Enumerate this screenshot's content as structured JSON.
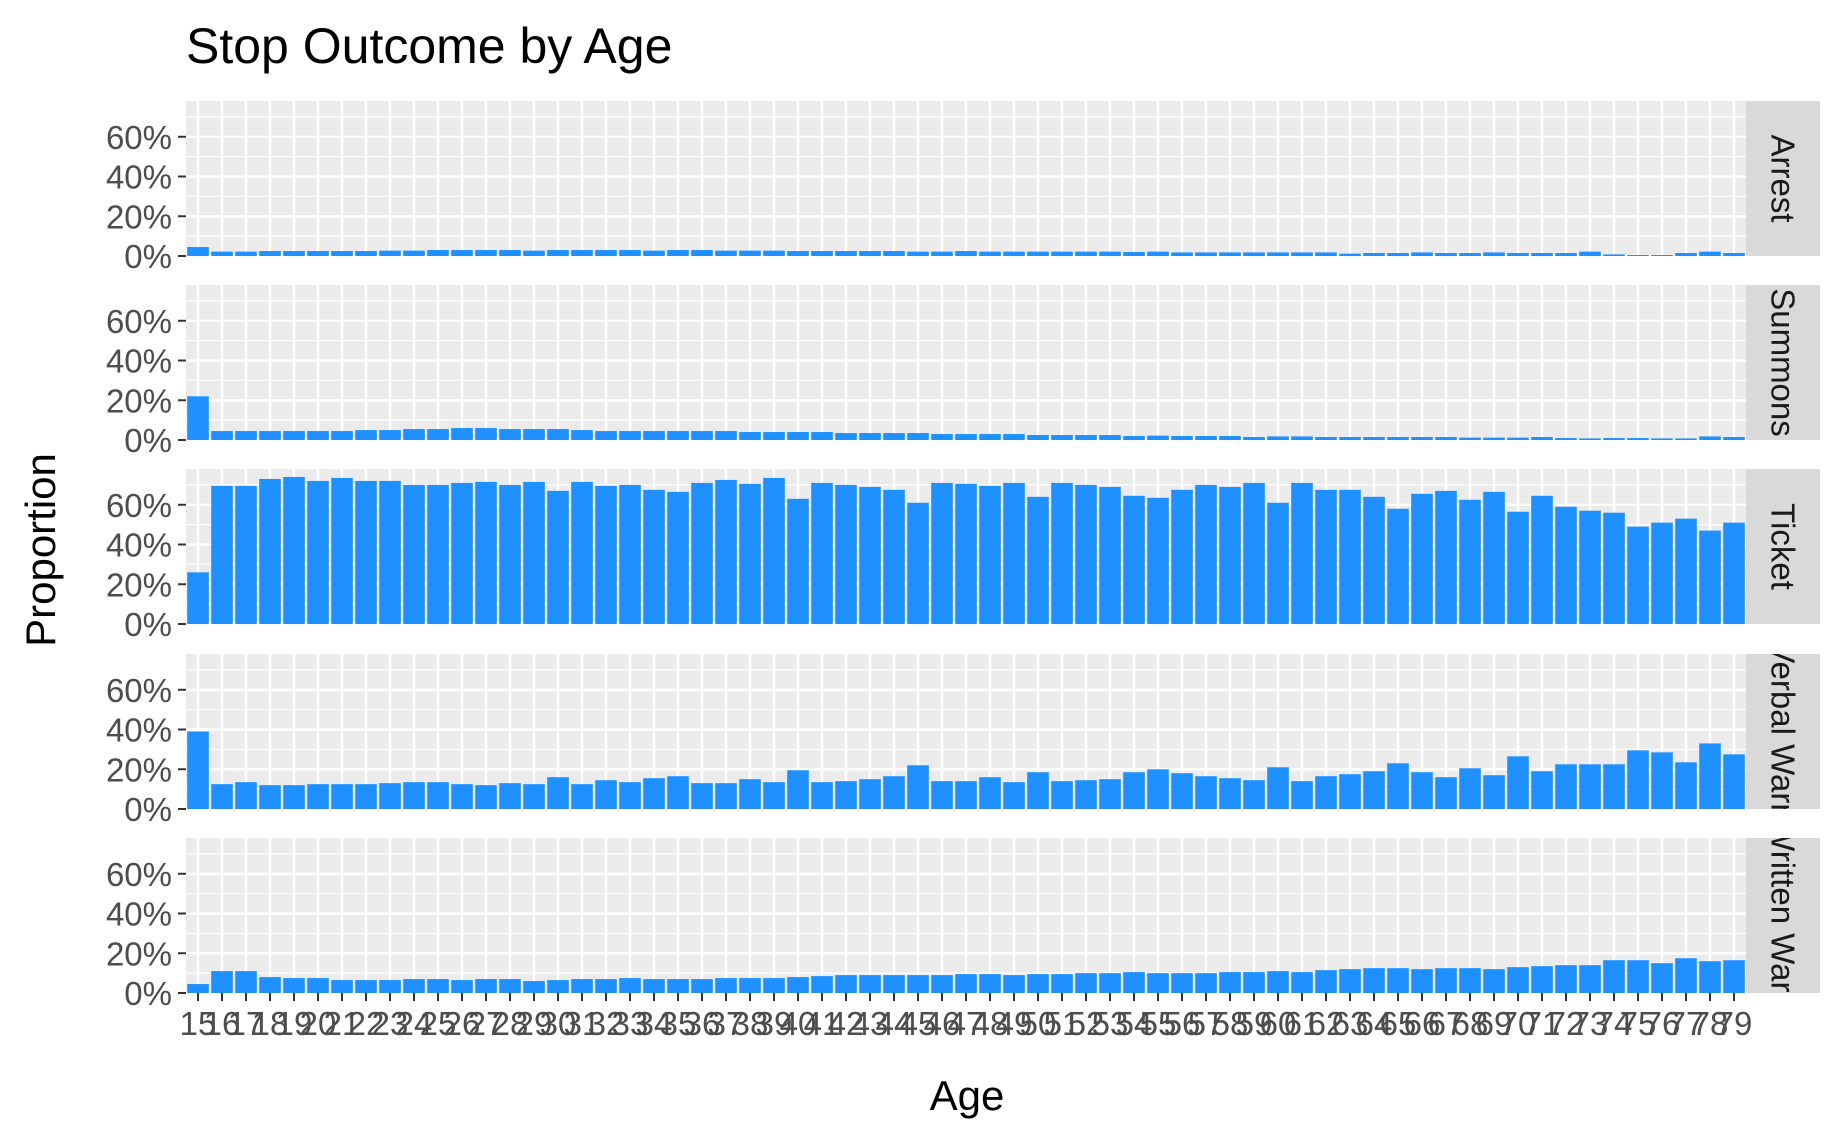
{
  "chart_data": {
    "type": "bar",
    "title": "Stop Outcome by Age",
    "xlabel": "Age",
    "ylabel": "Proportion",
    "facet_direction": "rows",
    "y_ticks": [
      "0%",
      "20%",
      "40%",
      "60%"
    ],
    "ylim": [
      0,
      0.78
    ],
    "bar_color": "#1E90FF",
    "panel_background": "#EBEBEB",
    "strip_background": "#D9D9D9",
    "gridlines": true,
    "x": [
      15,
      16,
      17,
      18,
      19,
      20,
      21,
      22,
      23,
      24,
      25,
      26,
      27,
      28,
      29,
      30,
      31,
      32,
      33,
      34,
      35,
      36,
      37,
      38,
      39,
      40,
      41,
      42,
      43,
      44,
      45,
      46,
      47,
      48,
      49,
      50,
      51,
      52,
      53,
      54,
      55,
      56,
      57,
      58,
      59,
      60,
      61,
      62,
      63,
      64,
      65,
      66,
      67,
      68,
      69,
      70,
      71,
      72,
      73,
      74,
      75,
      76,
      77,
      78,
      79
    ],
    "x_tick_labels": [
      "15",
      "16",
      "17",
      "18",
      "19",
      "20",
      "21",
      "22",
      "23",
      "24",
      "25",
      "26",
      "27",
      "28",
      "29",
      "30",
      "31",
      "32",
      "33",
      "34",
      "35",
      "36",
      "37",
      "38",
      "39",
      "40",
      "41",
      "42",
      "43",
      "44",
      "45",
      "46",
      "47",
      "48",
      "49",
      "50",
      "51",
      "52",
      "53",
      "54",
      "55",
      "56",
      "57",
      "58",
      "59",
      "60",
      "61",
      "62",
      "63",
      "64",
      "65",
      "66",
      "67",
      "68",
      "69",
      "70",
      "71",
      "72",
      "73",
      "74",
      "75",
      "76",
      "77",
      "78",
      "79"
    ],
    "series": [
      {
        "name": "Arrest",
        "values": [
          0.045,
          0.022,
          0.022,
          0.025,
          0.025,
          0.025,
          0.025,
          0.025,
          0.027,
          0.027,
          0.03,
          0.03,
          0.03,
          0.03,
          0.027,
          0.03,
          0.03,
          0.03,
          0.03,
          0.027,
          0.03,
          0.03,
          0.027,
          0.027,
          0.027,
          0.025,
          0.025,
          0.025,
          0.025,
          0.025,
          0.022,
          0.022,
          0.025,
          0.022,
          0.022,
          0.022,
          0.022,
          0.022,
          0.022,
          0.02,
          0.022,
          0.018,
          0.018,
          0.018,
          0.018,
          0.018,
          0.018,
          0.018,
          0.012,
          0.015,
          0.015,
          0.018,
          0.015,
          0.015,
          0.018,
          0.015,
          0.015,
          0.015,
          0.022,
          0.008,
          0.005,
          0.005,
          0.015,
          0.022,
          0.015
        ]
      },
      {
        "name": "Summons",
        "values": [
          0.22,
          0.045,
          0.045,
          0.045,
          0.045,
          0.045,
          0.045,
          0.05,
          0.05,
          0.055,
          0.055,
          0.06,
          0.06,
          0.055,
          0.055,
          0.055,
          0.05,
          0.045,
          0.045,
          0.045,
          0.045,
          0.045,
          0.045,
          0.04,
          0.04,
          0.04,
          0.04,
          0.035,
          0.035,
          0.035,
          0.035,
          0.03,
          0.03,
          0.03,
          0.03,
          0.025,
          0.025,
          0.025,
          0.025,
          0.02,
          0.022,
          0.02,
          0.02,
          0.02,
          0.015,
          0.018,
          0.018,
          0.015,
          0.015,
          0.015,
          0.015,
          0.015,
          0.015,
          0.012,
          0.012,
          0.012,
          0.015,
          0.01,
          0.008,
          0.01,
          0.01,
          0.008,
          0.008,
          0.018,
          0.015
        ]
      },
      {
        "name": "Ticket",
        "values": [
          0.26,
          0.695,
          0.695,
          0.73,
          0.74,
          0.72,
          0.735,
          0.72,
          0.72,
          0.7,
          0.7,
          0.71,
          0.715,
          0.7,
          0.715,
          0.67,
          0.715,
          0.695,
          0.7,
          0.675,
          0.665,
          0.71,
          0.725,
          0.705,
          0.735,
          0.63,
          0.71,
          0.7,
          0.69,
          0.675,
          0.61,
          0.71,
          0.705,
          0.695,
          0.71,
          0.64,
          0.71,
          0.7,
          0.69,
          0.645,
          0.635,
          0.675,
          0.7,
          0.69,
          0.71,
          0.61,
          0.71,
          0.675,
          0.675,
          0.64,
          0.58,
          0.655,
          0.67,
          0.625,
          0.665,
          0.565,
          0.645,
          0.59,
          0.57,
          0.56,
          0.49,
          0.51,
          0.53,
          0.47,
          0.51
        ]
      },
      {
        "name": "Verbal Warn",
        "values": [
          0.39,
          0.125,
          0.135,
          0.12,
          0.12,
          0.125,
          0.125,
          0.125,
          0.13,
          0.135,
          0.135,
          0.125,
          0.12,
          0.13,
          0.125,
          0.16,
          0.125,
          0.145,
          0.135,
          0.155,
          0.165,
          0.13,
          0.13,
          0.15,
          0.135,
          0.195,
          0.135,
          0.14,
          0.15,
          0.165,
          0.22,
          0.14,
          0.14,
          0.16,
          0.135,
          0.185,
          0.14,
          0.145,
          0.15,
          0.185,
          0.2,
          0.18,
          0.165,
          0.155,
          0.145,
          0.21,
          0.14,
          0.165,
          0.175,
          0.19,
          0.23,
          0.185,
          0.16,
          0.205,
          0.17,
          0.265,
          0.19,
          0.225,
          0.225,
          0.225,
          0.295,
          0.285,
          0.235,
          0.33,
          0.275
        ]
      },
      {
        "name": "Written Warn",
        "values": [
          0.045,
          0.11,
          0.11,
          0.08,
          0.075,
          0.075,
          0.065,
          0.065,
          0.065,
          0.07,
          0.07,
          0.065,
          0.07,
          0.07,
          0.06,
          0.065,
          0.07,
          0.07,
          0.075,
          0.07,
          0.07,
          0.07,
          0.075,
          0.075,
          0.075,
          0.08,
          0.085,
          0.09,
          0.09,
          0.09,
          0.09,
          0.09,
          0.095,
          0.095,
          0.09,
          0.095,
          0.095,
          0.1,
          0.1,
          0.105,
          0.1,
          0.1,
          0.1,
          0.105,
          0.105,
          0.11,
          0.105,
          0.115,
          0.12,
          0.125,
          0.125,
          0.12,
          0.125,
          0.125,
          0.12,
          0.13,
          0.135,
          0.14,
          0.14,
          0.165,
          0.165,
          0.15,
          0.175,
          0.16,
          0.165
        ]
      }
    ]
  }
}
